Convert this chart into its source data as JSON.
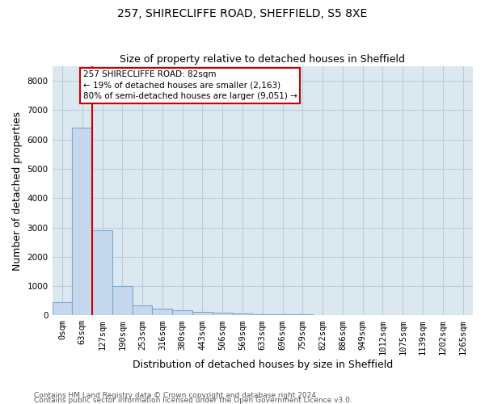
{
  "title": "257, SHIRECLIFFE ROAD, SHEFFIELD, S5 8XE",
  "subtitle": "Size of property relative to detached houses in Sheffield",
  "xlabel": "Distribution of detached houses by size in Sheffield",
  "ylabel": "Number of detached properties",
  "footnote1": "Contains HM Land Registry data © Crown copyright and database right 2024.",
  "footnote2": "Contains public sector information licensed under the Open Government Licence v3.0.",
  "categories": [
    "0sqm",
    "63sqm",
    "127sqm",
    "190sqm",
    "253sqm",
    "316sqm",
    "380sqm",
    "443sqm",
    "506sqm",
    "569sqm",
    "633sqm",
    "696sqm",
    "759sqm",
    "822sqm",
    "886sqm",
    "949sqm",
    "1012sqm",
    "1075sqm",
    "1139sqm",
    "1202sqm",
    "1265sqm"
  ],
  "values": [
    450,
    6400,
    2900,
    1000,
    330,
    230,
    170,
    120,
    90,
    65,
    50,
    38,
    28,
    22,
    18,
    14,
    11,
    9,
    7,
    6,
    5
  ],
  "bar_face_color": "#c5d8ee",
  "bar_edge_color": "#7aaacc",
  "vline_color": "#cc0000",
  "vline_index": 2,
  "annotation_text": "257 SHIRECLIFFE ROAD: 82sqm\n← 19% of detached houses are smaller (2,163)\n80% of semi-detached houses are larger (9,051) →",
  "annotation_box_color": "#cc0000",
  "ylim": [
    0,
    8500
  ],
  "yticks": [
    0,
    1000,
    2000,
    3000,
    4000,
    5000,
    6000,
    7000,
    8000
  ],
  "bg_color": "#dce8f0",
  "fig_color": "#ffffff",
  "grid_color": "#b8cedd",
  "title_fontsize": 10,
  "subtitle_fontsize": 9,
  "axis_label_fontsize": 9,
  "tick_fontsize": 7.5,
  "footnote_fontsize": 6.5
}
